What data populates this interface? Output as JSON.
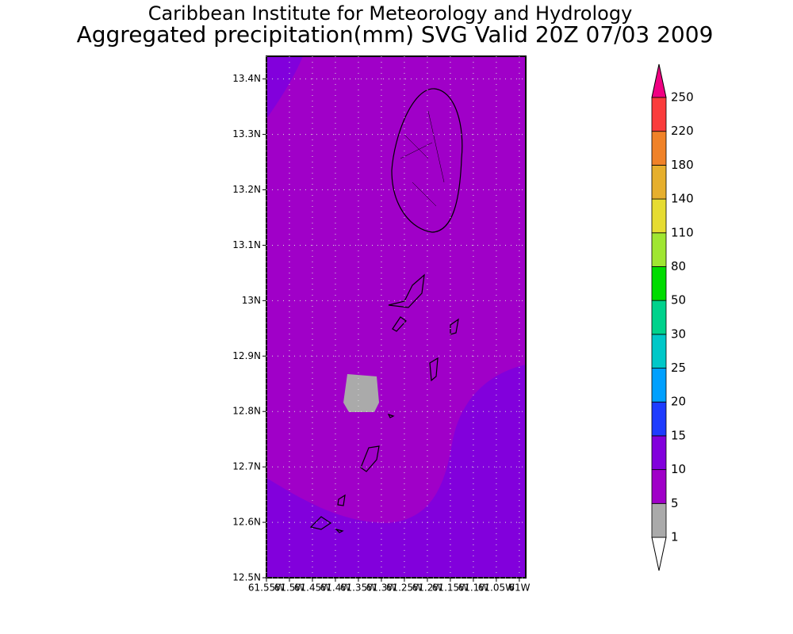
{
  "chart_data": {
    "type": "map",
    "title": "Caribbean Institute for Meteorology and Hydrology",
    "subtitle": "Aggregated precipitation(mm) SVG Valid 20Z 07/03 2009",
    "xlim": [
      -61.55,
      -60.986
    ],
    "ylim": [
      12.5,
      13.441
    ],
    "xticks": [
      {
        "value": -61.55,
        "label": "61.55W"
      },
      {
        "value": -61.5,
        "label": "61.5W"
      },
      {
        "value": -61.45,
        "label": "61.45W"
      },
      {
        "value": -61.4,
        "label": "61.4W"
      },
      {
        "value": -61.35,
        "label": "61.35W"
      },
      {
        "value": -61.3,
        "label": "61.3W"
      },
      {
        "value": -61.25,
        "label": "61.25W"
      },
      {
        "value": -61.2,
        "label": "61.2W"
      },
      {
        "value": -61.15,
        "label": "61.15W"
      },
      {
        "value": -61.1,
        "label": "61.1W"
      },
      {
        "value": -61.05,
        "label": "61.05W"
      },
      {
        "value": -61,
        "label": "61W"
      }
    ],
    "yticks": [
      {
        "value": 12.5,
        "label": "12.5N"
      },
      {
        "value": 12.6,
        "label": "12.6N"
      },
      {
        "value": 12.7,
        "label": "12.7N"
      },
      {
        "value": 12.8,
        "label": "12.8N"
      },
      {
        "value": 12.9,
        "label": "12.9N"
      },
      {
        "value": 13,
        "label": "13N"
      },
      {
        "value": 13.1,
        "label": "13.1N"
      },
      {
        "value": 13.2,
        "label": "13.2N"
      },
      {
        "value": 13.3,
        "label": "13.3N"
      },
      {
        "value": 13.4,
        "label": "13.4N"
      }
    ],
    "grid": true,
    "colorbar": {
      "levels": [
        1,
        5,
        10,
        15,
        20,
        25,
        30,
        50,
        80,
        110,
        140,
        180,
        220,
        250
      ],
      "under_color": "#ffffff",
      "over_color": "#f00082",
      "colors": [
        "#aaaaaa",
        "#a000c8",
        "#8200dc",
        "#1e3cff",
        "#00a0ff",
        "#00c8c8",
        "#00d28c",
        "#00dc00",
        "#a0e632",
        "#e6dc32",
        "#e6af2d",
        "#f08228",
        "#fa3c3c"
      ]
    }
  }
}
